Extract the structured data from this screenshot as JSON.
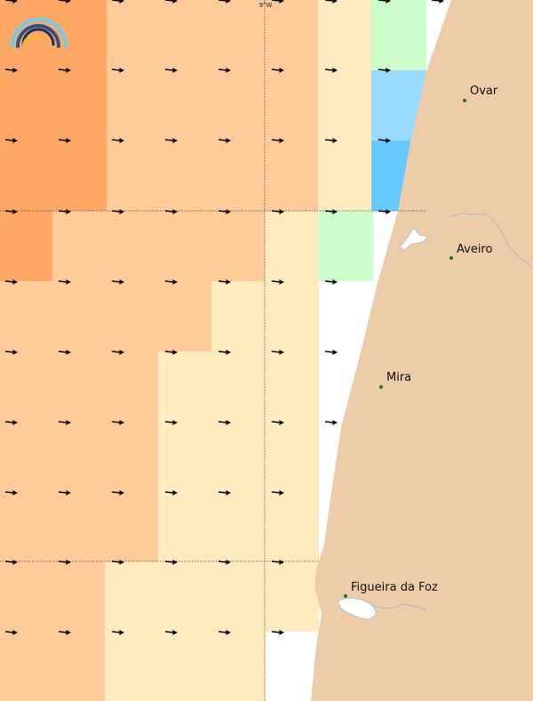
{
  "map": {
    "longitude_label": "9°W",
    "logo": {
      "name": "rainbow-logo",
      "colors": [
        "#6ecde8",
        "#2e4f8a",
        "#1c2a5e",
        "#f2b632"
      ]
    },
    "palette": {
      "sea_cool": [
        "#66c9ff",
        "#99dbff",
        "#ccffcc"
      ],
      "sea_warm": [
        "#ffebbf",
        "#ffcc99",
        "#ffa866"
      ],
      "land": "#edcda9",
      "coast_line": "#b0b6c8",
      "city_dot": "#1a7a1a",
      "grid_line": "#444444",
      "arrow": "#000000"
    },
    "cities": [
      {
        "id": "ovar",
        "name": "Ovar"
      },
      {
        "id": "aveiro",
        "name": "Aveiro"
      },
      {
        "id": "mira",
        "name": "Mira"
      },
      {
        "id": "figueira",
        "name": "Figueira da Foz"
      }
    ],
    "wind_arrow_direction": "east"
  }
}
